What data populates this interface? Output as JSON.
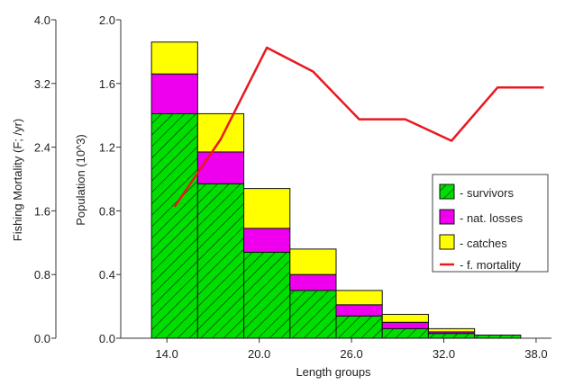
{
  "chart_data": {
    "type": "bar",
    "stacked": true,
    "xlabel": "Length groups",
    "ylabel": "Population (10^3)",
    "y2label": "Fishing Mortality (F; /yr)",
    "x_ticks": [
      "14.0",
      "20.0",
      "26.0",
      "32.0",
      "38.0"
    ],
    "x_range": [
      11,
      39
    ],
    "ylim": [
      0,
      2.0
    ],
    "y_ticks": [
      "0.0",
      "0.4",
      "0.8",
      "1.2",
      "1.6",
      "2.0"
    ],
    "y2lim": [
      0,
      4.0
    ],
    "y2_ticks": [
      "0.0",
      "0.8",
      "1.6",
      "2.4",
      "3.2",
      "4.0"
    ],
    "bin_width": 3,
    "bins": [
      13,
      16,
      19,
      22,
      25,
      28,
      31,
      34
    ],
    "series": [
      {
        "name": "survivors",
        "color": "#00dd00",
        "pattern": "hatched",
        "values": [
          1.41,
          0.97,
          0.54,
          0.3,
          0.14,
          0.06,
          0.03,
          0.02
        ]
      },
      {
        "name": "nat. losses",
        "color": "#ee00ee",
        "values": [
          0.25,
          0.2,
          0.15,
          0.1,
          0.07,
          0.04,
          0.01,
          0.0
        ]
      },
      {
        "name": "catches",
        "color": "#ffff00",
        "values": [
          0.2,
          0.24,
          0.25,
          0.16,
          0.09,
          0.05,
          0.02,
          0.0
        ]
      }
    ],
    "line": {
      "name": "f. mortality",
      "color": "#e8191f",
      "x": [
        14.5,
        17.5,
        20.5,
        23.5,
        26.5,
        29.5,
        32.5,
        35.5,
        38.5
      ],
      "y": [
        1.65,
        2.5,
        3.65,
        3.35,
        2.75,
        2.75,
        2.48,
        3.15,
        3.15
      ]
    },
    "legend": {
      "position": "right",
      "entries": [
        "- survivors",
        "- nat. losses",
        "- catches",
        "- f. mortality"
      ]
    }
  }
}
